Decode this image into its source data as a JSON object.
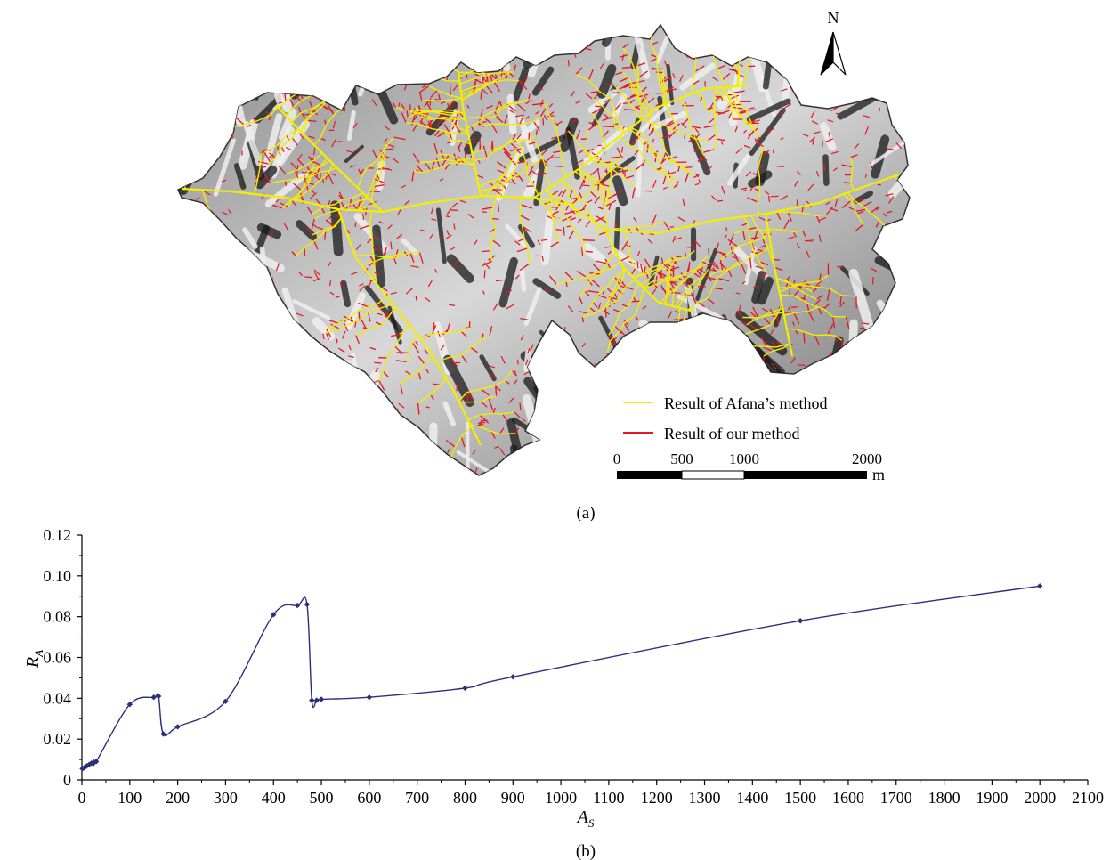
{
  "figure": {
    "panel_a_label": "(a)",
    "panel_b_label": "(b)"
  },
  "map": {
    "north_label": "N",
    "north_icon": "north-arrow-icon",
    "legend": [
      {
        "label": "Result of Afana’s method",
        "color": "#f2ee00"
      },
      {
        "label": "Result of our method",
        "color": "#e8161b"
      }
    ],
    "scalebar": {
      "ticks": [
        "0",
        "500",
        "1000",
        "2000"
      ],
      "unit": "m"
    },
    "colors": {
      "relief_light": "#efefef",
      "relief_dark": "#1a1a1a",
      "afana_channels": "#f2ee00",
      "our_channels": "#e8161b"
    }
  },
  "chart_data": {
    "type": "line",
    "xlabel": "A",
    "xlabel_sub": "S",
    "ylabel": "R",
    "ylabel_sub": "A",
    "xlim": [
      0,
      2100
    ],
    "ylim": [
      0,
      0.12
    ],
    "xticks": [
      0,
      100,
      200,
      300,
      400,
      500,
      600,
      700,
      800,
      900,
      1000,
      1100,
      1200,
      1300,
      1400,
      1500,
      1600,
      1700,
      1800,
      1900,
      2000,
      2100
    ],
    "yticks": [
      0,
      0.02,
      0.04,
      0.06,
      0.08,
      0.1,
      0.12
    ],
    "ytick_labels": [
      "0",
      "0.02",
      "0.04",
      "0.06",
      "0.08",
      "0.10",
      "0.12"
    ],
    "grid": false,
    "legend": "none",
    "color": "#2c2f7a",
    "series": [
      {
        "x": [
          1,
          5,
          10,
          15,
          20,
          25,
          30,
          100,
          150,
          160,
          170,
          200,
          300,
          400,
          450,
          470,
          480,
          490,
          500,
          600,
          800,
          900,
          1500,
          2000
        ],
        "y": [
          0.0055,
          0.006,
          0.0068,
          0.0075,
          0.0082,
          0.0087,
          0.009,
          0.037,
          0.0405,
          0.041,
          0.0225,
          0.026,
          0.0385,
          0.081,
          0.0855,
          0.086,
          0.039,
          0.039,
          0.0395,
          0.0405,
          0.045,
          0.0505,
          0.078,
          0.095
        ]
      }
    ]
  }
}
